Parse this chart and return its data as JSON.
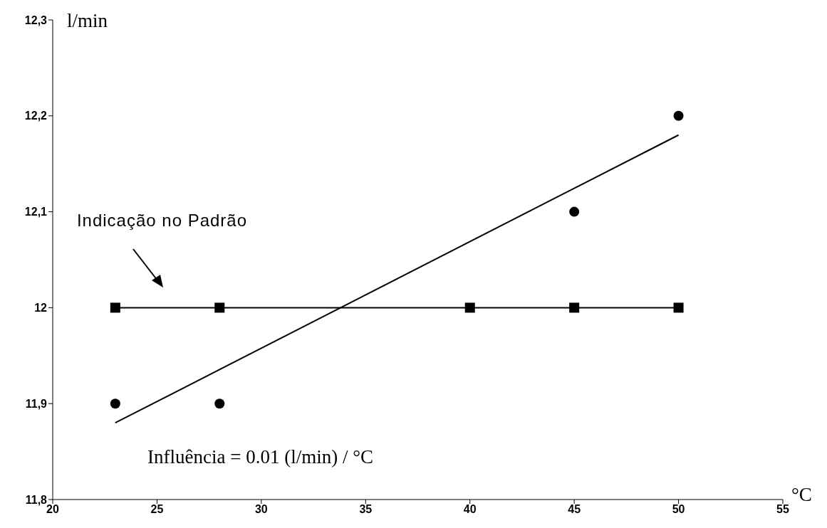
{
  "chart_data": {
    "type": "scatter",
    "xlabel": "°C",
    "ylabel": "l/min",
    "xlim": [
      20,
      55
    ],
    "xticks": [
      20,
      25,
      30,
      35,
      40,
      45,
      50,
      55
    ],
    "ylim": [
      11.8,
      12.3
    ],
    "yticks": [
      {
        "value": 11.8,
        "label": "11,8"
      },
      {
        "value": 11.9,
        "label": "11,9"
      },
      {
        "value": 12,
        "label": "12"
      },
      {
        "value": 12.1,
        "label": "12,1"
      },
      {
        "value": 12.2,
        "label": "12,2"
      },
      {
        "value": 12.3,
        "label": "12,3"
      }
    ],
    "series": [
      {
        "color": "#000000",
        "marker": "circle",
        "x": [
          23,
          28,
          45,
          50
        ],
        "values": [
          11.9,
          11.9,
          12.1,
          12.2
        ]
      },
      {
        "type": "line",
        "color": "#000000",
        "marker": "none",
        "x": [
          23,
          50
        ],
        "values": [
          11.88,
          12.18
        ]
      },
      {
        "type": "line",
        "color": "#000000",
        "marker": "square",
        "x": [
          23,
          28,
          40,
          45,
          50
        ],
        "values": [
          12,
          12,
          12,
          12,
          12
        ]
      }
    ],
    "annotations": [
      "Indicação no Padrão",
      "Influência = 0.01 (l/min) / °C"
    ]
  }
}
